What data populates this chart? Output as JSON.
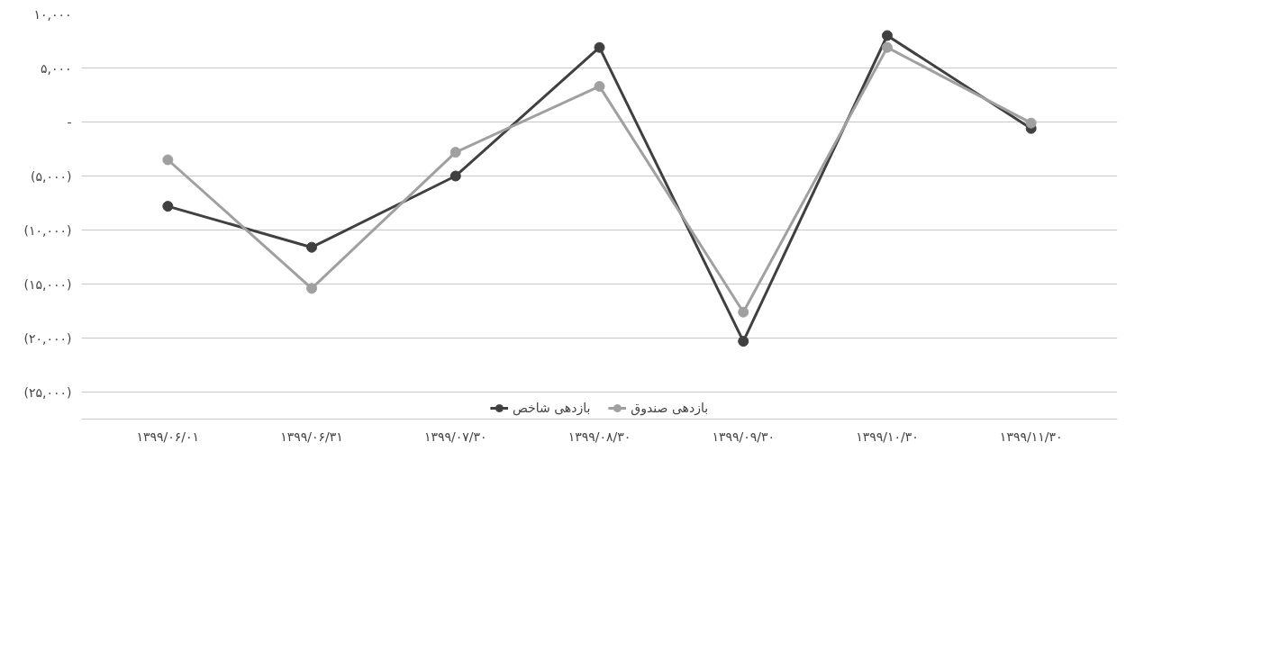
{
  "chart_data": {
    "type": "line",
    "categories": [
      "۱۳۹۹/۰۶/۰۱",
      "۱۳۹۹/۰۶/۳۱",
      "۱۳۹۹/۰۷/۳۰",
      "۱۳۹۹/۰۸/۳۰",
      "۱۳۹۹/۰۹/۳۰",
      "۱۳۹۹/۱۰/۳۰",
      "۱۳۹۹/۱۱/۳۰"
    ],
    "series": [
      {
        "name": "بازدهی شاخص",
        "color": "#404040",
        "values": [
          -7800,
          -11600,
          -5000,
          6900,
          -20300,
          8000,
          -600
        ]
      },
      {
        "name": "بازدهی صندوق",
        "color": "#a0a0a0",
        "values": [
          -3500,
          -15400,
          -2800,
          3300,
          -17600,
          6900,
          -100
        ]
      }
    ],
    "ylim": [
      -27500,
      10000
    ],
    "yticks": [
      {
        "value": 10000,
        "label": "۱۰,۰۰۰"
      },
      {
        "value": 5000,
        "label": "۵,۰۰۰"
      },
      {
        "value": 0,
        "label": "-"
      },
      {
        "value": -5000,
        "label": "(۵,۰۰۰)"
      },
      {
        "value": -10000,
        "label": "(۱۰,۰۰۰)"
      },
      {
        "value": -15000,
        "label": "(۱۵,۰۰۰)"
      },
      {
        "value": -20000,
        "label": "(۲۰,۰۰۰)"
      },
      {
        "value": -25000,
        "label": "(۲۵,۰۰۰)"
      }
    ],
    "grid": "y",
    "legend": "bottom",
    "marker": "circle",
    "line_style": "solid"
  }
}
